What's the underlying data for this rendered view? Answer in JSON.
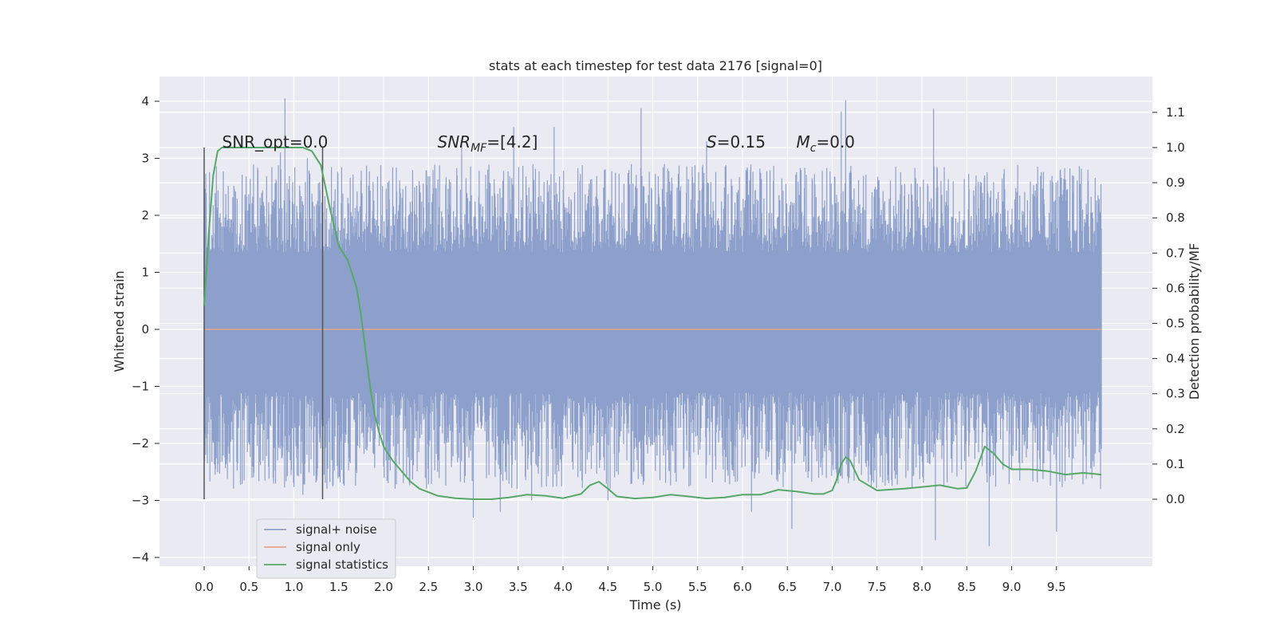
{
  "chart_data": {
    "type": "line",
    "title": "stats at each timestep for test data 2176 [signal=0]",
    "xlabel": "Time (s)",
    "ylabel": "Whitened strain",
    "y2label": "Detection probability/MF",
    "xlim": [
      -0.5,
      10.5
    ],
    "ylim": [
      -4.2,
      4.4
    ],
    "y2lim": [
      -0.2,
      1.2
    ],
    "x_ticks": [
      "0.0",
      "0.5",
      "1.0",
      "1.5",
      "2.0",
      "2.5",
      "3.0",
      "3.5",
      "4.0",
      "4.5",
      "5.0",
      "5.5",
      "6.0",
      "6.5",
      "7.0",
      "7.5",
      "8.0",
      "8.5",
      "9.0",
      "9.5"
    ],
    "y_ticks": [
      "−4",
      "−3",
      "−2",
      "−1",
      "0",
      "1",
      "2",
      "3",
      "4"
    ],
    "y2_ticks": [
      "0.0",
      "0.1",
      "0.2",
      "0.3",
      "0.4",
      "0.5",
      "0.6",
      "0.7",
      "0.8",
      "0.9",
      "1.0",
      "1.1"
    ],
    "grid": true,
    "legend_position": "lower-left",
    "series": [
      {
        "name": "signal+ noise",
        "color": "#8da0cb",
        "note_values": "dense noise trace, 0.0-10.0 s",
        "band_inner": [
          -1.1,
          1.35
        ],
        "band_outer": [
          -1.9,
          2.0
        ],
        "peaks": [
          [
            0.9,
            4.05
          ],
          [
            4.87,
            3.88
          ],
          [
            7.15,
            4.02
          ],
          [
            7.1,
            3.82
          ],
          [
            8.13,
            3.87
          ],
          [
            3.9,
            3.55
          ],
          [
            3.45,
            3.55
          ],
          [
            2.87,
            3.25
          ],
          [
            1.15,
            3.0
          ],
          [
            0.85,
            3.1
          ],
          [
            5.6,
            3.3
          ],
          [
            6.6,
            2.3
          ],
          [
            9.85,
            2.8
          ]
        ],
        "troughs": [
          [
            3.0,
            -3.3
          ],
          [
            3.3,
            -3.2
          ],
          [
            6.55,
            -3.5
          ],
          [
            8.15,
            -3.7
          ],
          [
            8.75,
            -3.8
          ],
          [
            9.5,
            -3.55
          ],
          [
            6.1,
            -3.2
          ],
          [
            4.5,
            -3.0
          ],
          [
            3.65,
            -3.0
          ],
          [
            1.1,
            -2.9
          ]
        ]
      },
      {
        "name": "signal only",
        "color": "#e5a58d",
        "x": [
          0.0,
          10.0
        ],
        "y": [
          0.0,
          0.0
        ]
      },
      {
        "name": "signal statistics",
        "color": "#55a868",
        "axis": "right",
        "x": [
          0.0,
          0.05,
          0.1,
          0.15,
          0.2,
          0.3,
          0.5,
          0.8,
          1.0,
          1.1,
          1.2,
          1.3,
          1.4,
          1.5,
          1.6,
          1.7,
          1.75,
          1.8,
          1.85,
          1.9,
          1.95,
          2.0,
          2.1,
          2.2,
          2.3,
          2.4,
          2.5,
          2.6,
          2.8,
          3.0,
          3.2,
          3.4,
          3.6,
          3.8,
          4.0,
          4.2,
          4.3,
          4.4,
          4.5,
          4.6,
          4.8,
          5.0,
          5.2,
          5.4,
          5.6,
          5.8,
          6.0,
          6.2,
          6.4,
          6.6,
          6.8,
          6.9,
          7.0,
          7.05,
          7.1,
          7.15,
          7.2,
          7.3,
          7.5,
          7.8,
          8.0,
          8.2,
          8.4,
          8.5,
          8.6,
          8.7,
          8.8,
          8.9,
          9.0,
          9.2,
          9.4,
          9.6,
          9.8,
          10.0
        ],
        "y": [
          0.55,
          0.75,
          0.92,
          0.99,
          1.0,
          1.0,
          1.0,
          1.0,
          1.0,
          1.0,
          0.99,
          0.95,
          0.83,
          0.72,
          0.68,
          0.6,
          0.52,
          0.42,
          0.32,
          0.24,
          0.19,
          0.15,
          0.11,
          0.08,
          0.05,
          0.03,
          0.02,
          0.01,
          0.003,
          0.0,
          0.0,
          0.005,
          0.013,
          0.01,
          0.003,
          0.015,
          0.04,
          0.05,
          0.03,
          0.008,
          0.002,
          0.005,
          0.013,
          0.008,
          0.002,
          0.005,
          0.013,
          0.013,
          0.027,
          0.022,
          0.015,
          0.015,
          0.025,
          0.055,
          0.1,
          0.12,
          0.11,
          0.055,
          0.025,
          0.03,
          0.035,
          0.04,
          0.03,
          0.032,
          0.08,
          0.15,
          0.13,
          0.1,
          0.085,
          0.085,
          0.08,
          0.07,
          0.075,
          0.07
        ]
      }
    ],
    "vertical_lines": [
      0.0,
      1.32
    ],
    "annotations": [
      {
        "text": "SNR_opt=0.0",
        "x": 0.2
      },
      {
        "text_main": "SNR",
        "text_sub": "MF",
        "text_rest": "=[4.2]",
        "x": 2.6
      },
      {
        "text_main": "S",
        "text_rest": "=0.15",
        "x": 5.6
      },
      {
        "text_main": "M",
        "text_sub": "c",
        "text_rest": "=0.0",
        "x": 6.6
      }
    ]
  }
}
